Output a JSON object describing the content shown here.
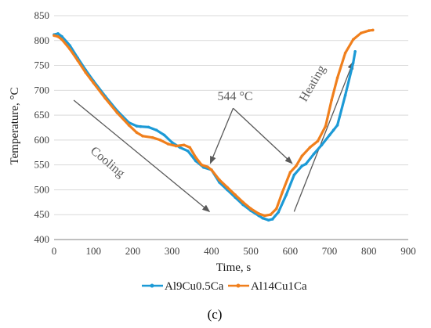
{
  "chart_data": {
    "type": "line",
    "xlabel": "Time, s",
    "ylabel": "Temperature, °C",
    "xlim": [
      0,
      900
    ],
    "ylim": [
      400,
      850
    ],
    "xticks": [
      "0",
      "100",
      "200",
      "300",
      "400",
      "500",
      "600",
      "700",
      "800",
      "900"
    ],
    "yticks": [
      "400",
      "450",
      "500",
      "550",
      "600",
      "650",
      "700",
      "750",
      "800",
      "850"
    ],
    "grid": "horizontal",
    "legend_position": "bottom",
    "caption": "(c)",
    "series": [
      {
        "name": "Al9Cu0.5Ca",
        "color": "#1c9ad6",
        "x": [
          0,
          10,
          20,
          40,
          60,
          80,
          100,
          130,
          160,
          190,
          210,
          220,
          240,
          260,
          280,
          300,
          320,
          340,
          360,
          380,
          400,
          420,
          440,
          460,
          480,
          500,
          520,
          530,
          545,
          555,
          570,
          590,
          610,
          630,
          640,
          660,
          680,
          700,
          710,
          720,
          740,
          760,
          765
        ],
        "y": [
          812,
          814,
          808,
          790,
          765,
          741,
          719,
          688,
          659,
          635,
          628,
          627,
          626,
          620,
          610,
          595,
          585,
          578,
          558,
          545,
          540,
          515,
          500,
          485,
          470,
          458,
          448,
          443,
          439,
          441,
          455,
          490,
          530,
          548,
          552,
          572,
          590,
          610,
          620,
          630,
          690,
          755,
          778
        ]
      },
      {
        "name": "Al14Cu1Ca",
        "color": "#f07f1c",
        "x": [
          0,
          10,
          20,
          40,
          60,
          80,
          100,
          130,
          160,
          190,
          210,
          225,
          250,
          270,
          290,
          310,
          330,
          345,
          360,
          375,
          390,
          400,
          420,
          440,
          460,
          480,
          500,
          520,
          535,
          550,
          565,
          580,
          600,
          615,
          630,
          650,
          670,
          690,
          705,
          720,
          740,
          760,
          780,
          800,
          810
        ],
        "y": [
          810,
          808,
          802,
          783,
          760,
          736,
          715,
          684,
          655,
          630,
          615,
          608,
          605,
          600,
          592,
          588,
          590,
          585,
          565,
          550,
          546,
          540,
          520,
          505,
          490,
          475,
          462,
          452,
          448,
          450,
          462,
          495,
          535,
          548,
          568,
          585,
          598,
          628,
          680,
          725,
          775,
          802,
          815,
          820,
          821
        ]
      }
    ],
    "annotations": [
      {
        "text": "Cooling",
        "x": 130,
        "y": 550,
        "rotation": 40
      },
      {
        "text": "Heating",
        "x": 665,
        "y": 710,
        "rotation": -60
      },
      {
        "text": "544 °C",
        "x": 460,
        "y": 680
      }
    ],
    "arrows": [
      {
        "from": [
          50,
          680
        ],
        "to": [
          395,
          456
        ]
      },
      {
        "from": [
          610,
          456
        ],
        "to": [
          760,
          757
        ]
      },
      {
        "from": [
          455,
          664
        ],
        "to": [
          397,
          553
        ]
      },
      {
        "from": [
          455,
          664
        ],
        "to": [
          605,
          553
        ]
      }
    ]
  }
}
